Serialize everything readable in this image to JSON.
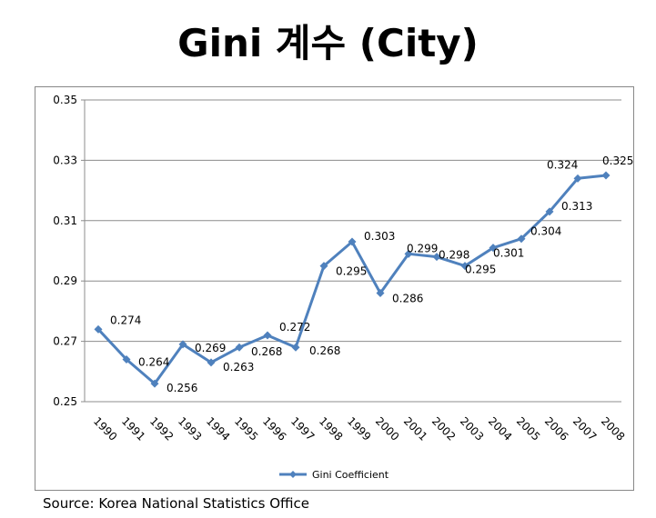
{
  "title": "Gini 계수 (City)",
  "source": "Source: Korea National Statistics Office",
  "chart_data": {
    "type": "line",
    "title": "Gini 계수 (City)",
    "xlabel": "",
    "ylabel": "",
    "x": [
      "1990",
      "1991",
      "1992",
      "1993",
      "1994",
      "1995",
      "1996",
      "1997",
      "1998",
      "1999",
      "2000",
      "2001",
      "2002",
      "2003",
      "2004",
      "2005",
      "2006",
      "2007",
      "2008"
    ],
    "series": [
      {
        "name": "Gini Coefficient",
        "color": "#4f81bd",
        "values": [
          0.274,
          0.264,
          0.256,
          0.269,
          0.263,
          0.268,
          0.272,
          0.268,
          0.295,
          0.303,
          0.286,
          0.299,
          0.298,
          0.295,
          0.301,
          0.304,
          0.313,
          0.324,
          0.325
        ]
      }
    ],
    "ylim": [
      0.25,
      0.35
    ],
    "yticks": [
      "0.25",
      "0.27",
      "0.29",
      "0.31",
      "0.33",
      "0.35"
    ],
    "data_labels": [
      "0.274",
      "0.264",
      "0.256",
      "0.269",
      "0.263",
      "0.268",
      "0.272",
      "0.268",
      "0.295",
      "0.303",
      "0.286",
      "0.299",
      "0.298",
      "0.295",
      "0.301",
      "0.304",
      "0.313",
      "0.324",
      "0.325"
    ],
    "grid": true,
    "legend": "bottom"
  }
}
